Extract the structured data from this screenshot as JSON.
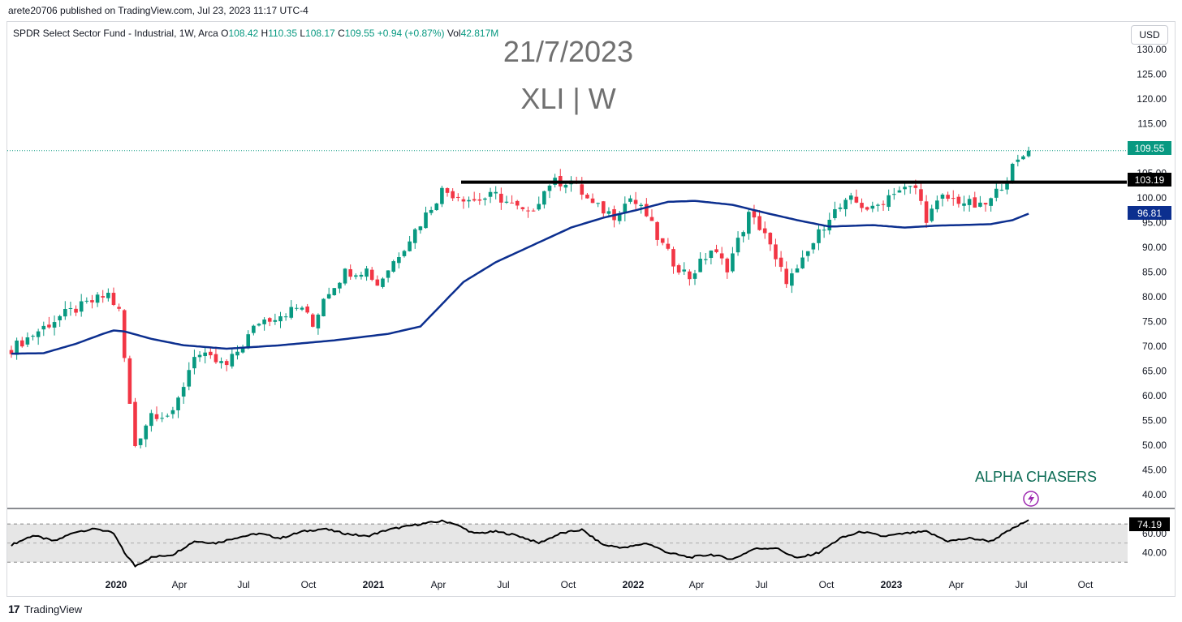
{
  "attribution": "arete20706 published on TradingView.com, Jul 23, 2023 11:17 UTC-4",
  "legend": {
    "name": "SPDR Select Sector Fund - Industrial, 1W, Arca",
    "o_label": "O",
    "o_value": "108.42",
    "h_label": "H",
    "h_value": "110.35",
    "l_label": "L",
    "l_value": "108.17",
    "c_label": "C",
    "c_value": "109.55",
    "change": "+0.94 (+0.87%)",
    "vol_label": "Vol",
    "vol_value": "42.817M"
  },
  "currency_button": "USD",
  "overlay": {
    "date": "21/7/2023",
    "ticker": "XLI | W",
    "brand": "ALPHA CHASERS",
    "brand_icon": "lightning-bolt-icon"
  },
  "footer": {
    "logo": "17",
    "brand": "TradingView"
  },
  "colors": {
    "up": "#089981",
    "down": "#f23645",
    "ma": "#0c2f8f",
    "resistance": "#000000",
    "rsi_band": "#e6e6e6",
    "brand": "#0b6b54",
    "brand_icon": "#9c27b0"
  },
  "chart_data": {
    "type": "candlestick",
    "price_axis": {
      "ticks": [
        "130.00",
        "125.00",
        "120.00",
        "115.00",
        "110.00",
        "105.00",
        "100.00",
        "95.00",
        "90.00",
        "85.00",
        "80.00",
        "75.00",
        "70.00",
        "65.00",
        "60.00",
        "55.00",
        "50.00",
        "45.00",
        "40.00"
      ],
      "range": [
        39,
        131
      ]
    },
    "time_axis": {
      "labels": [
        "2020",
        "Apr",
        "Jul",
        "Oct",
        "2021",
        "Apr",
        "Jul",
        "Oct",
        "2022",
        "Apr",
        "Jul",
        "Oct",
        "2023",
        "Apr",
        "Jul",
        "Oct"
      ],
      "bold": [
        "2020",
        "2021",
        "2022",
        "2023"
      ]
    },
    "price_labels": {
      "last": "109.55",
      "resistance": "103.19",
      "ma": "96.81"
    },
    "resistance_level": 103.19,
    "anchors": [
      {
        "w": 0,
        "p": 69.5
      },
      {
        "w": 9,
        "p": 76
      },
      {
        "w": 18,
        "p": 80.5
      },
      {
        "w": 20,
        "p": 77
      },
      {
        "w": 22,
        "p": 58
      },
      {
        "w": 23,
        "p": 50
      },
      {
        "w": 26,
        "p": 56.5
      },
      {
        "w": 30,
        "p": 56
      },
      {
        "w": 34,
        "p": 68.5
      },
      {
        "w": 40,
        "p": 66
      },
      {
        "w": 46,
        "p": 75
      },
      {
        "w": 54,
        "p": 78
      },
      {
        "w": 56,
        "p": 74
      },
      {
        "w": 58,
        "p": 80
      },
      {
        "w": 62,
        "p": 85
      },
      {
        "w": 66,
        "p": 85.5
      },
      {
        "w": 68,
        "p": 82.5
      },
      {
        "w": 76,
        "p": 95
      },
      {
        "w": 80,
        "p": 101.5
      },
      {
        "w": 86,
        "p": 99.5
      },
      {
        "w": 90,
        "p": 100.5
      },
      {
        "w": 96,
        "p": 96.5
      },
      {
        "w": 100,
        "p": 103
      },
      {
        "w": 104,
        "p": 103.5
      },
      {
        "w": 108,
        "p": 98.5
      },
      {
        "w": 112,
        "p": 96.5
      },
      {
        "w": 115,
        "p": 100
      },
      {
        "w": 118,
        "p": 96.5
      },
      {
        "w": 120,
        "p": 92
      },
      {
        "w": 123,
        "p": 87
      },
      {
        "w": 126,
        "p": 84
      },
      {
        "w": 130,
        "p": 89.5
      },
      {
        "w": 133,
        "p": 86
      },
      {
        "w": 137,
        "p": 96.5
      },
      {
        "w": 140,
        "p": 93
      },
      {
        "w": 142,
        "p": 87
      },
      {
        "w": 144,
        "p": 83.5
      },
      {
        "w": 146,
        "p": 85
      },
      {
        "w": 148,
        "p": 89
      },
      {
        "w": 152,
        "p": 96.5
      },
      {
        "w": 156,
        "p": 99.5
      },
      {
        "w": 160,
        "p": 97.5
      },
      {
        "w": 164,
        "p": 101.5
      },
      {
        "w": 168,
        "p": 102
      },
      {
        "w": 170,
        "p": 96
      },
      {
        "w": 173,
        "p": 100
      },
      {
        "w": 176,
        "p": 99.5
      },
      {
        "w": 180,
        "p": 98
      },
      {
        "w": 182,
        "p": 99.5
      },
      {
        "w": 186,
        "p": 106
      },
      {
        "w": 188,
        "p": 108.5
      },
      {
        "w": 189,
        "p": 109.55
      }
    ],
    "ma": [
      {
        "w": 0,
        "p": 68.5
      },
      {
        "w": 6,
        "p": 68.6
      },
      {
        "w": 12,
        "p": 70.5
      },
      {
        "w": 17,
        "p": 72.5
      },
      {
        "w": 19,
        "p": 73.2
      },
      {
        "w": 21,
        "p": 73
      },
      {
        "w": 26,
        "p": 71.5
      },
      {
        "w": 32,
        "p": 70.2
      },
      {
        "w": 40,
        "p": 69.5
      },
      {
        "w": 50,
        "p": 70.2
      },
      {
        "w": 60,
        "p": 71.2
      },
      {
        "w": 70,
        "p": 72.5
      },
      {
        "w": 76,
        "p": 74
      },
      {
        "w": 80,
        "p": 78.5
      },
      {
        "w": 84,
        "p": 83
      },
      {
        "w": 90,
        "p": 87
      },
      {
        "w": 98,
        "p": 91
      },
      {
        "w": 104,
        "p": 94
      },
      {
        "w": 110,
        "p": 96
      },
      {
        "w": 116,
        "p": 97.5
      },
      {
        "w": 122,
        "p": 99.2
      },
      {
        "w": 127,
        "p": 99.4
      },
      {
        "w": 134,
        "p": 98.6
      },
      {
        "w": 140,
        "p": 97
      },
      {
        "w": 146,
        "p": 95.5
      },
      {
        "w": 152,
        "p": 94.2
      },
      {
        "w": 160,
        "p": 94.5
      },
      {
        "w": 166,
        "p": 94
      },
      {
        "w": 172,
        "p": 94.4
      },
      {
        "w": 176,
        "p": 94.5
      },
      {
        "w": 182,
        "p": 94.7
      },
      {
        "w": 186,
        "p": 95.5
      },
      {
        "w": 189,
        "p": 96.81
      }
    ],
    "rsi": {
      "ticks": [
        "60.00",
        "40.00"
      ],
      "last": "74.19",
      "band": [
        30,
        70
      ],
      "range": [
        20,
        82
      ],
      "points": [
        {
          "w": 0,
          "p": 48
        },
        {
          "w": 4,
          "p": 58
        },
        {
          "w": 8,
          "p": 52
        },
        {
          "w": 12,
          "p": 62
        },
        {
          "w": 16,
          "p": 65
        },
        {
          "w": 19,
          "p": 60
        },
        {
          "w": 21,
          "p": 40
        },
        {
          "w": 23,
          "p": 26
        },
        {
          "w": 26,
          "p": 35
        },
        {
          "w": 30,
          "p": 38
        },
        {
          "w": 34,
          "p": 52
        },
        {
          "w": 38,
          "p": 50
        },
        {
          "w": 42,
          "p": 56
        },
        {
          "w": 46,
          "p": 60
        },
        {
          "w": 50,
          "p": 55
        },
        {
          "w": 54,
          "p": 62
        },
        {
          "w": 58,
          "p": 65
        },
        {
          "w": 62,
          "p": 60
        },
        {
          "w": 66,
          "p": 57
        },
        {
          "w": 70,
          "p": 64
        },
        {
          "w": 76,
          "p": 70
        },
        {
          "w": 80,
          "p": 73
        },
        {
          "w": 82,
          "p": 71
        },
        {
          "w": 86,
          "p": 60
        },
        {
          "w": 90,
          "p": 62
        },
        {
          "w": 94,
          "p": 58
        },
        {
          "w": 98,
          "p": 50
        },
        {
          "w": 102,
          "p": 60
        },
        {
          "w": 106,
          "p": 64
        },
        {
          "w": 110,
          "p": 48
        },
        {
          "w": 114,
          "p": 45
        },
        {
          "w": 118,
          "p": 50
        },
        {
          "w": 122,
          "p": 40
        },
        {
          "w": 126,
          "p": 35
        },
        {
          "w": 130,
          "p": 38
        },
        {
          "w": 134,
          "p": 33
        },
        {
          "w": 138,
          "p": 44
        },
        {
          "w": 142,
          "p": 45
        },
        {
          "w": 146,
          "p": 34
        },
        {
          "w": 150,
          "p": 40
        },
        {
          "w": 154,
          "p": 55
        },
        {
          "w": 158,
          "p": 62
        },
        {
          "w": 162,
          "p": 57
        },
        {
          "w": 166,
          "p": 60
        },
        {
          "w": 170,
          "p": 62
        },
        {
          "w": 174,
          "p": 52
        },
        {
          "w": 178,
          "p": 55
        },
        {
          "w": 182,
          "p": 52
        },
        {
          "w": 186,
          "p": 65
        },
        {
          "w": 189,
          "p": 74.19
        }
      ]
    }
  }
}
